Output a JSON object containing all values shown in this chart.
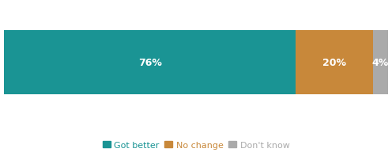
{
  "values": [
    76,
    20,
    4
  ],
  "labels": [
    "76%",
    "20%",
    "4%"
  ],
  "colors": [
    "#1a9494",
    "#c8883a",
    "#aaaaaa"
  ],
  "legend_labels": [
    "Got better",
    "No change",
    "Don't know"
  ],
  "legend_text_colors": [
    "#1a9494",
    "#c8883a",
    "#aaaaaa"
  ],
  "background_color": "#ffffff",
  "text_color": "#ffffff",
  "label_fontsize": 9,
  "legend_fontsize": 8
}
